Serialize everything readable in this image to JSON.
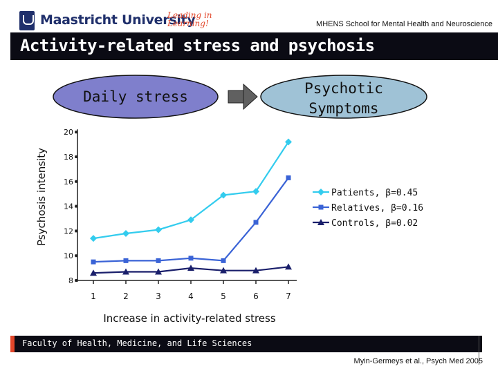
{
  "header": {
    "university": "Maastricht University",
    "tagline": "Leading in Learning!",
    "school": "MHENS School for Mental Health and Neuroscience"
  },
  "slide": {
    "title": "Activity-related stress and psychosis"
  },
  "diagram": {
    "left_label": "Daily stress",
    "right_label_line1": "Psychotic",
    "right_label_line2": "Symptoms"
  },
  "footer": {
    "faculty": "Faculty of Health, Medicine, and Life Sciences",
    "citation": "Myin-Germeys et al., Psych Med 2005"
  },
  "colors": {
    "patients": "#33ccee",
    "relatives": "#3a63d6",
    "controls": "#1a1f6b",
    "ellipse": "#7f7fcc",
    "ellipse_right": "#9fc2d6"
  },
  "chart_data": {
    "type": "line",
    "x": [
      1,
      2,
      3,
      4,
      5,
      6,
      7
    ],
    "xlabel": "Increase in activity-related stress",
    "ylabel": "Psychosis intensity",
    "ylim": [
      8,
      20
    ],
    "yticks": [
      8,
      10,
      12,
      14,
      16,
      18,
      20
    ],
    "legend_position": "right",
    "grid": false,
    "series": [
      {
        "name": "Patients, β=0.45",
        "marker": "diamond",
        "values": [
          11.4,
          11.8,
          12.1,
          12.9,
          14.9,
          15.2,
          19.2
        ]
      },
      {
        "name": "Relatives, β=0.16",
        "marker": "square",
        "values": [
          9.5,
          9.6,
          9.6,
          9.8,
          9.6,
          12.7,
          16.3
        ]
      },
      {
        "name": "Controls, β=0.02",
        "marker": "triangle",
        "values": [
          8.6,
          8.7,
          8.7,
          9.0,
          8.8,
          8.8,
          9.1
        ]
      }
    ]
  }
}
